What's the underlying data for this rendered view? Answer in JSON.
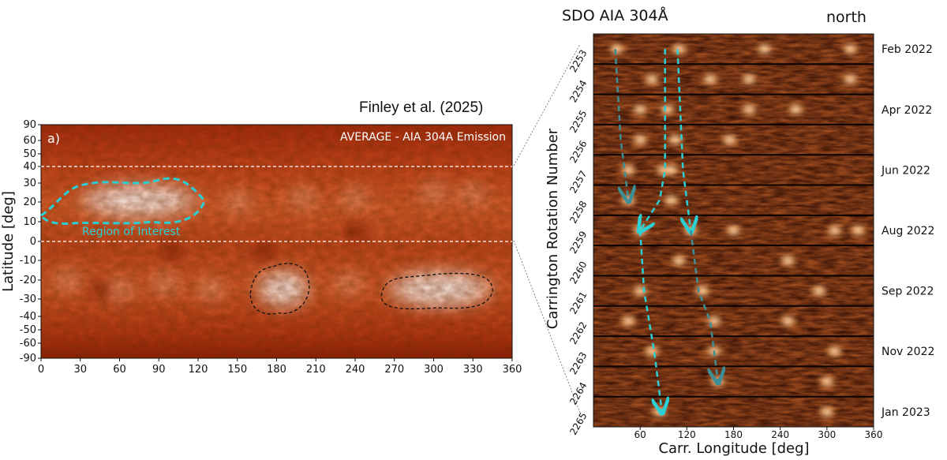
{
  "left_panel": {
    "credit": "Finley et al. (2025)",
    "panel_letter": "a)",
    "inset_title": "AVERAGE - AIA 304A Emission",
    "ylabel": "Latitude [deg]",
    "region_label": "Region of Interest",
    "colors": {
      "region_outline": "#2ad0d4",
      "secondary_outline": "#111111",
      "bright": "#fff4ee",
      "mid": "#d85a28",
      "dark": "#7a1404"
    }
  },
  "right_panel": {
    "title": "SDO AIA 304Å",
    "hemisphere": "north",
    "ylabel": "Carrington Rotation Number",
    "xlabel": "Carr. Longitude [deg]",
    "colors": {
      "dashed_track": "#2ad0d4",
      "arrow_grey": "#3d8f95",
      "dark": "#1a0502",
      "bright": "#ff9a3a"
    }
  },
  "chart_data": [
    {
      "type": "heatmap",
      "title": "AVERAGE - AIA 304A Emission",
      "xlabel": "",
      "ylabel": "Latitude [deg]",
      "x_ticks": [
        0,
        30,
        60,
        90,
        120,
        150,
        180,
        210,
        240,
        270,
        300,
        330,
        360
      ],
      "y_ticks": [
        90,
        60,
        50,
        40,
        30,
        20,
        10,
        0,
        -10,
        -20,
        -30,
        -40,
        -50,
        -60,
        -90
      ],
      "xlim": [
        0,
        360
      ],
      "ylim": [
        -90,
        90
      ],
      "reference_lines_lat": [
        40,
        0
      ],
      "region_of_interest": {
        "label": "Region of Interest",
        "lon": [
          0,
          125
        ],
        "lat": [
          10,
          32
        ]
      },
      "bright_regions": [
        {
          "lon": [
            30,
            120
          ],
          "lat": [
            12,
            30
          ]
        },
        {
          "lon": [
            165,
            205
          ],
          "lat": [
            -35,
            -15
          ]
        },
        {
          "lon": [
            265,
            345
          ],
          "lat": [
            -35,
            -15
          ]
        }
      ],
      "outlined_regions": [
        {
          "lon": [
            160,
            205
          ],
          "lat": [
            -38,
            -12
          ]
        },
        {
          "lon": [
            260,
            345
          ],
          "lat": [
            -35,
            -17
          ]
        }
      ]
    },
    {
      "type": "heatmap",
      "title": "SDO AIA 304Å",
      "xlabel": "Carr. Longitude [deg]",
      "ylabel": "Carrington Rotation Number",
      "x_ticks": [
        60,
        120,
        180,
        240,
        300,
        360
      ],
      "xlim": [
        0,
        360
      ],
      "rotations": [
        2253,
        2254,
        2255,
        2256,
        2257,
        2258,
        2259,
        2260,
        2261,
        2262,
        2263,
        2264,
        2265
      ],
      "dates": [
        {
          "rotation": 2253,
          "label": "Feb 2022"
        },
        {
          "rotation": 2255,
          "label": "Apr 2022"
        },
        {
          "rotation": 2257,
          "label": "Jun 2022"
        },
        {
          "rotation": 2259,
          "label": "Aug 2022"
        },
        {
          "rotation": 2261,
          "label": "Sep 2022"
        },
        {
          "rotation": 2263,
          "label": "Nov 2022"
        },
        {
          "rotation": 2265,
          "label": "Jan 2023"
        }
      ],
      "tracks": [
        {
          "style": "grey-dashed-arrow",
          "points": [
            [
              28,
              2253
            ],
            [
              35,
              2256
            ],
            [
              45,
              2258
            ]
          ]
        },
        {
          "style": "cyan-dashed-arrow",
          "points": [
            [
              92,
              2253
            ],
            [
              92,
              2257
            ],
            [
              85,
              2258
            ],
            [
              60,
              2259
            ]
          ]
        },
        {
          "style": "cyan-dashed-arrow",
          "points": [
            [
              108,
              2253
            ],
            [
              115,
              2257
            ],
            [
              125,
              2259
            ]
          ]
        },
        {
          "style": "cyan-dashed-arrow",
          "points": [
            [
              60,
              2259
            ],
            [
              65,
              2261
            ],
            [
              78,
              2263
            ],
            [
              88,
              2265
            ]
          ]
        },
        {
          "style": "grey-dashed-arrow",
          "points": [
            [
              125,
              2259
            ],
            [
              135,
              2261
            ],
            [
              150,
              2262
            ],
            [
              160,
              2264
            ]
          ]
        }
      ],
      "bright_spots": [
        [
          30,
          2253
        ],
        [
          110,
          2253
        ],
        [
          220,
          2253
        ],
        [
          330,
          2253
        ],
        [
          75,
          2254
        ],
        [
          150,
          2254
        ],
        [
          200,
          2254
        ],
        [
          330,
          2254
        ],
        [
          60,
          2255
        ],
        [
          95,
          2255
        ],
        [
          200,
          2255
        ],
        [
          260,
          2255
        ],
        [
          60,
          2256
        ],
        [
          105,
          2256
        ],
        [
          175,
          2256
        ],
        [
          45,
          2257
        ],
        [
          90,
          2257
        ],
        [
          100,
          2257
        ],
        [
          45,
          2258
        ],
        [
          100,
          2258
        ],
        [
          60,
          2259
        ],
        [
          125,
          2259
        ],
        [
          180,
          2259
        ],
        [
          310,
          2259
        ],
        [
          340,
          2259
        ],
        [
          110,
          2260
        ],
        [
          250,
          2260
        ],
        [
          60,
          2261
        ],
        [
          140,
          2261
        ],
        [
          290,
          2261
        ],
        [
          45,
          2262
        ],
        [
          155,
          2262
        ],
        [
          250,
          2262
        ],
        [
          75,
          2263
        ],
        [
          155,
          2263
        ],
        [
          310,
          2263
        ],
        [
          160,
          2264
        ],
        [
          300,
          2264
        ],
        [
          85,
          2265
        ],
        [
          300,
          2265
        ]
      ]
    }
  ]
}
